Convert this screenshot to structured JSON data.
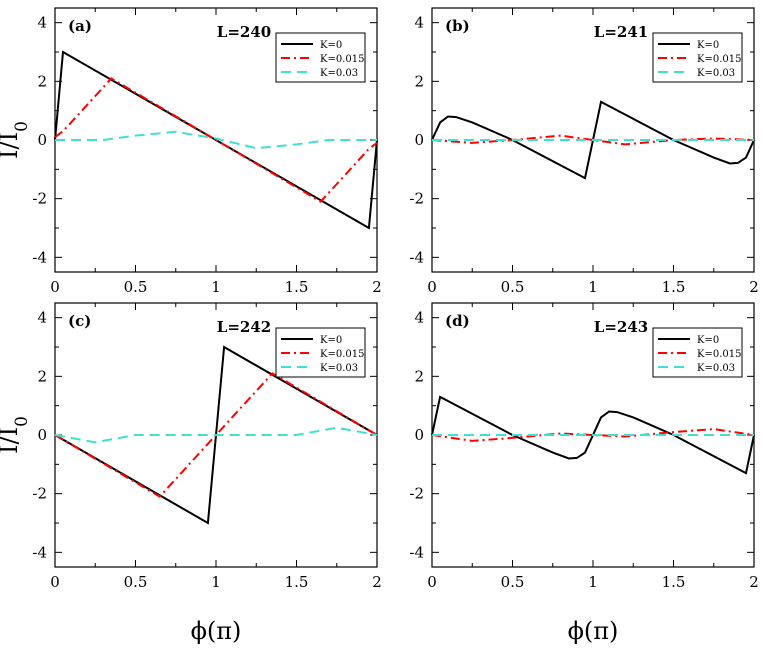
{
  "chart_data": [
    {
      "type": "line",
      "panel_label": "(a)",
      "title": "L=240",
      "xlabel": "",
      "ylabel": "I/I0",
      "xlim": [
        0,
        2
      ],
      "ylim": [
        -4.5,
        4.5
      ],
      "xticks": [
        "0",
        "0.5",
        "1",
        "1.5",
        "2"
      ],
      "yticks": [
        "-4",
        "-2",
        "0",
        "2",
        "4"
      ],
      "legend": [
        "K=0",
        "K=0.015",
        "K=0.03"
      ],
      "series": [
        {
          "name": "K=0",
          "color": "#000000",
          "style": "solid",
          "x": [
            0,
            0.05,
            1.95,
            2.0
          ],
          "y": [
            0,
            3.0,
            -3.0,
            0
          ]
        },
        {
          "name": "K=0.015",
          "color": "#ff0000",
          "style": "dashdot",
          "x": [
            0,
            0.05,
            0.15,
            0.25,
            0.35,
            1.0,
            1.65,
            1.75,
            1.85,
            1.95,
            2.0
          ],
          "y": [
            0.1,
            0.3,
            0.9,
            1.5,
            2.1,
            0,
            -2.1,
            -1.5,
            -0.9,
            -0.3,
            -0.1
          ]
        },
        {
          "name": "K=0.03",
          "color": "#40e0d0",
          "style": "dash",
          "x": [
            0,
            0.3,
            0.5,
            0.75,
            1.0,
            1.25,
            1.5,
            1.7,
            2.0
          ],
          "y": [
            0,
            0,
            0.15,
            0.28,
            0.05,
            -0.28,
            -0.15,
            0,
            0
          ]
        }
      ]
    },
    {
      "type": "line",
      "panel_label": "(b)",
      "title": "L=241",
      "xlabel": "",
      "ylabel": "",
      "xlim": [
        0,
        2
      ],
      "ylim": [
        -4.5,
        4.5
      ],
      "xticks": [
        "0",
        "0.5",
        "1",
        "1.5",
        "2"
      ],
      "yticks": [
        "-4",
        "-2",
        "0",
        "2",
        "4"
      ],
      "legend": [
        "K=0",
        "K=0.015",
        "K=0.03"
      ],
      "series": [
        {
          "name": "K=0",
          "color": "#000000",
          "style": "solid",
          "x": [
            0,
            0.05,
            0.1,
            0.15,
            0.25,
            0.5,
            0.95,
            1.05,
            1.5,
            1.75,
            1.85,
            1.9,
            1.95,
            2.0
          ],
          "y": [
            0,
            0.6,
            0.8,
            0.78,
            0.6,
            0,
            -1.3,
            1.3,
            0,
            -0.6,
            -0.8,
            -0.78,
            -0.6,
            0
          ]
        },
        {
          "name": "K=0.015",
          "color": "#ff0000",
          "style": "dashdot",
          "x": [
            0,
            0.25,
            0.5,
            0.8,
            1.0,
            1.2,
            1.5,
            1.75,
            2.0
          ],
          "y": [
            0,
            -0.1,
            0,
            0.15,
            0,
            -0.15,
            0,
            0.05,
            0
          ]
        },
        {
          "name": "K=0.03",
          "color": "#40e0d0",
          "style": "dash",
          "x": [
            0,
            2.0
          ],
          "y": [
            0,
            0
          ]
        }
      ]
    },
    {
      "type": "line",
      "panel_label": "(c)",
      "title": "L=242",
      "xlabel": "ϕ(π)",
      "ylabel": "I/I0",
      "xlim": [
        0,
        2
      ],
      "ylim": [
        -4.5,
        4.5
      ],
      "xticks": [
        "0",
        "0.5",
        "1",
        "1.5",
        "2"
      ],
      "yticks": [
        "-4",
        "-2",
        "0",
        "2",
        "4"
      ],
      "legend": [
        "K=0",
        "K=0.015",
        "K=0.03"
      ],
      "series": [
        {
          "name": "K=0",
          "color": "#000000",
          "style": "solid",
          "x": [
            0,
            0.95,
            1.05,
            2.0
          ],
          "y": [
            0,
            -3.0,
            3.0,
            0
          ]
        },
        {
          "name": "K=0.015",
          "color": "#ff0000",
          "style": "dashdot",
          "x": [
            0,
            0.65,
            0.75,
            0.85,
            0.95,
            1.05,
            1.15,
            1.25,
            1.35,
            2.0
          ],
          "y": [
            0,
            -2.1,
            -1.5,
            -0.9,
            -0.3,
            0.3,
            0.9,
            1.5,
            2.1,
            0
          ]
        },
        {
          "name": "K=0.03",
          "color": "#40e0d0",
          "style": "dash",
          "x": [
            0,
            0.25,
            0.5,
            1.0,
            1.5,
            1.75,
            2.0
          ],
          "y": [
            0,
            -0.25,
            0,
            0,
            0,
            0.25,
            0
          ]
        }
      ]
    },
    {
      "type": "line",
      "panel_label": "(d)",
      "title": "L=243",
      "xlabel": "ϕ(π)",
      "ylabel": "",
      "xlim": [
        0,
        2
      ],
      "ylim": [
        -4.5,
        4.5
      ],
      "xticks": [
        "0",
        "0.5",
        "1",
        "1.5",
        "2"
      ],
      "yticks": [
        "-4",
        "-2",
        "0",
        "2",
        "4"
      ],
      "legend": [
        "K=0",
        "K=0.015",
        "K=0.03"
      ],
      "series": [
        {
          "name": "K=0",
          "color": "#000000",
          "style": "solid",
          "x": [
            0,
            0.05,
            0.5,
            0.75,
            0.85,
            0.9,
            0.95,
            1.05,
            1.1,
            1.15,
            1.25,
            1.5,
            1.95,
            2.0
          ],
          "y": [
            0,
            1.3,
            0,
            -0.6,
            -0.8,
            -0.78,
            -0.6,
            0.6,
            0.8,
            0.78,
            0.6,
            0,
            -1.3,
            0
          ]
        },
        {
          "name": "K=0.015",
          "color": "#ff0000",
          "style": "dashdot",
          "x": [
            0,
            0.25,
            0.5,
            0.8,
            1.0,
            1.2,
            1.5,
            1.75,
            2.0
          ],
          "y": [
            0,
            -0.2,
            -0.1,
            0.05,
            0,
            -0.05,
            0.1,
            0.2,
            0
          ]
        },
        {
          "name": "K=0.03",
          "color": "#40e0d0",
          "style": "dash",
          "x": [
            0,
            2.0
          ],
          "y": [
            0,
            0
          ]
        }
      ]
    }
  ]
}
